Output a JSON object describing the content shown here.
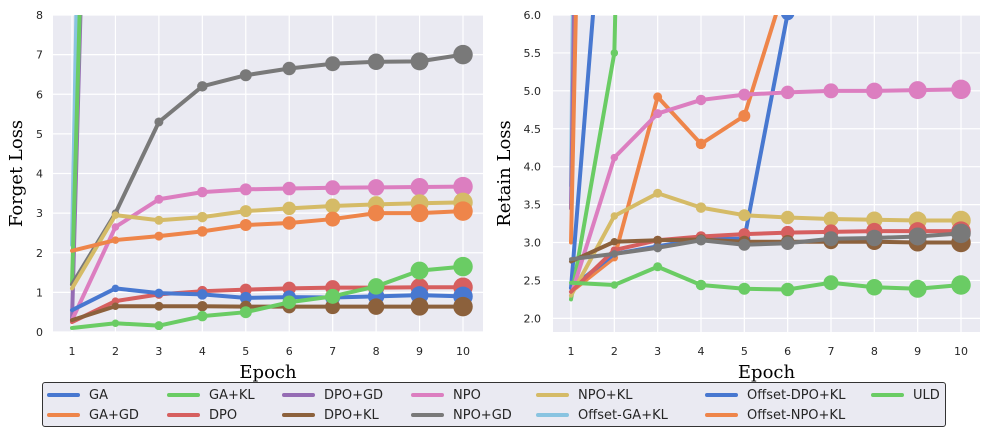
{
  "chart_data": [
    {
      "type": "line",
      "title": "",
      "xlabel": "Epoch",
      "ylabel": "Forget Loss",
      "x": [
        1,
        2,
        3,
        4,
        5,
        6,
        7,
        8,
        9,
        10
      ],
      "xticks": [
        "1",
        "2",
        "3",
        "4",
        "5",
        "6",
        "7",
        "8",
        "9",
        "10"
      ],
      "ylim": [
        0,
        8
      ],
      "yticks": [
        "0",
        "1",
        "2",
        "3",
        "4",
        "5",
        "6",
        "7",
        "8"
      ],
      "ytick_values": [
        0,
        1,
        2,
        3,
        4,
        5,
        6,
        7,
        8
      ],
      "grid": true,
      "series": [
        {
          "name": "Offset-GA+KL",
          "color": "#89c4e1",
          "values": [
            2.2,
            60,
            null,
            null,
            null,
            null,
            null,
            null,
            null,
            null
          ]
        },
        {
          "name": "DPO+GD",
          "color": "#956cb4",
          "values": [
            0.3,
            40,
            null,
            null,
            null,
            null,
            null,
            null,
            null,
            null
          ]
        },
        {
          "name": "GA+KL",
          "color": "#6acc64",
          "values": [
            1.2,
            40,
            null,
            null,
            null,
            null,
            null,
            null,
            null,
            null
          ]
        },
        {
          "name": "NPO+GD",
          "color": "#797979",
          "values": [
            1.2,
            3.0,
            5.3,
            6.2,
            6.48,
            6.65,
            6.77,
            6.82,
            6.83,
            7.0
          ]
        },
        {
          "name": "NPO",
          "color": "#dc7ec0",
          "values": [
            0.3,
            2.65,
            3.35,
            3.53,
            3.6,
            3.62,
            3.64,
            3.65,
            3.66,
            3.67
          ]
        },
        {
          "name": "NPO+KL",
          "color": "#d5bb67",
          "values": [
            1.1,
            2.95,
            2.82,
            2.9,
            3.05,
            3.12,
            3.18,
            3.22,
            3.25,
            3.27
          ]
        },
        {
          "name": "GA+GD",
          "color": "#ee854a",
          "values": [
            2.05,
            2.32,
            2.42,
            2.54,
            2.7,
            2.75,
            2.85,
            3.0,
            3.0,
            3.05
          ]
        },
        {
          "name": "DPO",
          "color": "#d65f5f",
          "values": [
            0.25,
            0.78,
            0.95,
            1.03,
            1.07,
            1.1,
            1.12,
            1.12,
            1.13,
            1.13
          ]
        },
        {
          "name": "GA",
          "color": "#4878d0",
          "values": [
            0.55,
            1.1,
            0.98,
            0.95,
            0.86,
            0.88,
            0.87,
            0.9,
            0.93,
            0.9
          ]
        },
        {
          "name": "DPO+KL",
          "color": "#8c613c",
          "values": [
            0.3,
            0.65,
            0.65,
            0.65,
            0.64,
            0.64,
            0.64,
            0.64,
            0.64,
            0.64
          ]
        },
        {
          "name": "ULD",
          "color": "#6acc64",
          "values": [
            0.1,
            0.22,
            0.16,
            0.4,
            0.5,
            0.75,
            0.9,
            1.15,
            1.55,
            1.65
          ]
        }
      ]
    },
    {
      "type": "line",
      "title": "",
      "xlabel": "Epoch",
      "ylabel": "Retain Loss",
      "x": [
        1,
        2,
        3,
        4,
        5,
        6,
        7,
        8,
        9,
        10
      ],
      "xticks": [
        "1",
        "2",
        "3",
        "4",
        "5",
        "6",
        "7",
        "8",
        "9",
        "10"
      ],
      "ylim": [
        1.82,
        6.0
      ],
      "yticks": [
        "2.0",
        "2.5",
        "3.0",
        "3.5",
        "4.0",
        "4.5",
        "5.0",
        "5.5",
        "6.0"
      ],
      "ytick_values": [
        2.0,
        2.5,
        3.0,
        3.5,
        4.0,
        4.5,
        5.0,
        5.5,
        6.0
      ],
      "grid": true,
      "series": [
        {
          "name": "Offset-GA+KL",
          "color": "#89c4e1",
          "values": [
            3.75,
            60,
            null,
            null,
            null,
            null,
            null,
            null,
            null,
            null
          ]
        },
        {
          "name": "DPO+GD",
          "color": "#956cb4",
          "values": [
            3.45,
            40,
            null,
            null,
            null,
            null,
            null,
            null,
            null,
            null
          ]
        },
        {
          "name": "Offset-NPO+KL",
          "color": "#ee854a",
          "values": [
            3.0,
            30,
            null,
            null,
            null,
            null,
            null,
            null,
            null,
            null
          ]
        },
        {
          "name": "GA",
          "color": "#4878d0",
          "values": [
            2.4,
            9.5,
            null,
            null,
            null,
            null,
            null,
            null,
            null,
            null
          ]
        },
        {
          "name": "GA+KL",
          "color": "#6acc64",
          "values": [
            2.25,
            5.5,
            30,
            null,
            null,
            null,
            null,
            null,
            null,
            null
          ]
        },
        {
          "name": "GA+GD",
          "color": "#ee854a",
          "values": [
            2.35,
            2.8,
            4.92,
            4.3,
            4.67,
            6.5,
            null,
            null,
            null,
            null
          ]
        },
        {
          "name": "Offset-DPO+KL",
          "color": "#4878d0",
          "values": [
            2.4,
            2.85,
            2.95,
            3.05,
            3.05,
            6.02,
            null,
            null,
            null,
            null
          ]
        },
        {
          "name": "NPO",
          "color": "#dc7ec0",
          "values": [
            2.3,
            4.12,
            4.7,
            4.88,
            4.95,
            4.98,
            5.0,
            5.0,
            5.01,
            5.02
          ]
        },
        {
          "name": "NPO+KL",
          "color": "#d5bb67",
          "values": [
            2.3,
            3.35,
            3.65,
            3.46,
            3.36,
            3.33,
            3.31,
            3.3,
            3.29,
            3.29
          ]
        },
        {
          "name": "DPO",
          "color": "#d65f5f",
          "values": [
            2.35,
            2.9,
            3.03,
            3.08,
            3.11,
            3.13,
            3.14,
            3.15,
            3.15,
            3.15
          ]
        },
        {
          "name": "DPO+KL",
          "color": "#8c613c",
          "values": [
            2.75,
            3.01,
            3.03,
            3.04,
            3.01,
            3.01,
            3.01,
            3.01,
            3.0,
            3.0
          ]
        },
        {
          "name": "NPO+GD",
          "color": "#797979",
          "values": [
            2.78,
            2.85,
            2.93,
            3.03,
            2.97,
            2.99,
            3.05,
            3.06,
            3.08,
            3.12
          ]
        },
        {
          "name": "ULD",
          "color": "#6acc64",
          "values": [
            2.47,
            2.44,
            2.68,
            2.44,
            2.39,
            2.38,
            2.47,
            2.41,
            2.39,
            2.44
          ]
        }
      ]
    }
  ],
  "legend": {
    "columns": 7,
    "items": [
      {
        "label": "GA",
        "color": "#4878d0"
      },
      {
        "label": "GA+GD",
        "color": "#ee854a"
      },
      {
        "label": "GA+KL",
        "color": "#6acc64"
      },
      {
        "label": "DPO",
        "color": "#d65f5f"
      },
      {
        "label": "DPO+GD",
        "color": "#956cb4"
      },
      {
        "label": "DPO+KL",
        "color": "#8c613c"
      },
      {
        "label": "NPO",
        "color": "#dc7ec0"
      },
      {
        "label": "NPO+GD",
        "color": "#797979"
      },
      {
        "label": "NPO+KL",
        "color": "#d5bb67"
      },
      {
        "label": "Offset-GA+KL",
        "color": "#89c4e1"
      },
      {
        "label": "Offset-DPO+KL",
        "color": "#4878d0"
      },
      {
        "label": "Offset-NPO+KL",
        "color": "#ee854a"
      },
      {
        "label": "ULD",
        "color": "#6acc64"
      }
    ]
  }
}
